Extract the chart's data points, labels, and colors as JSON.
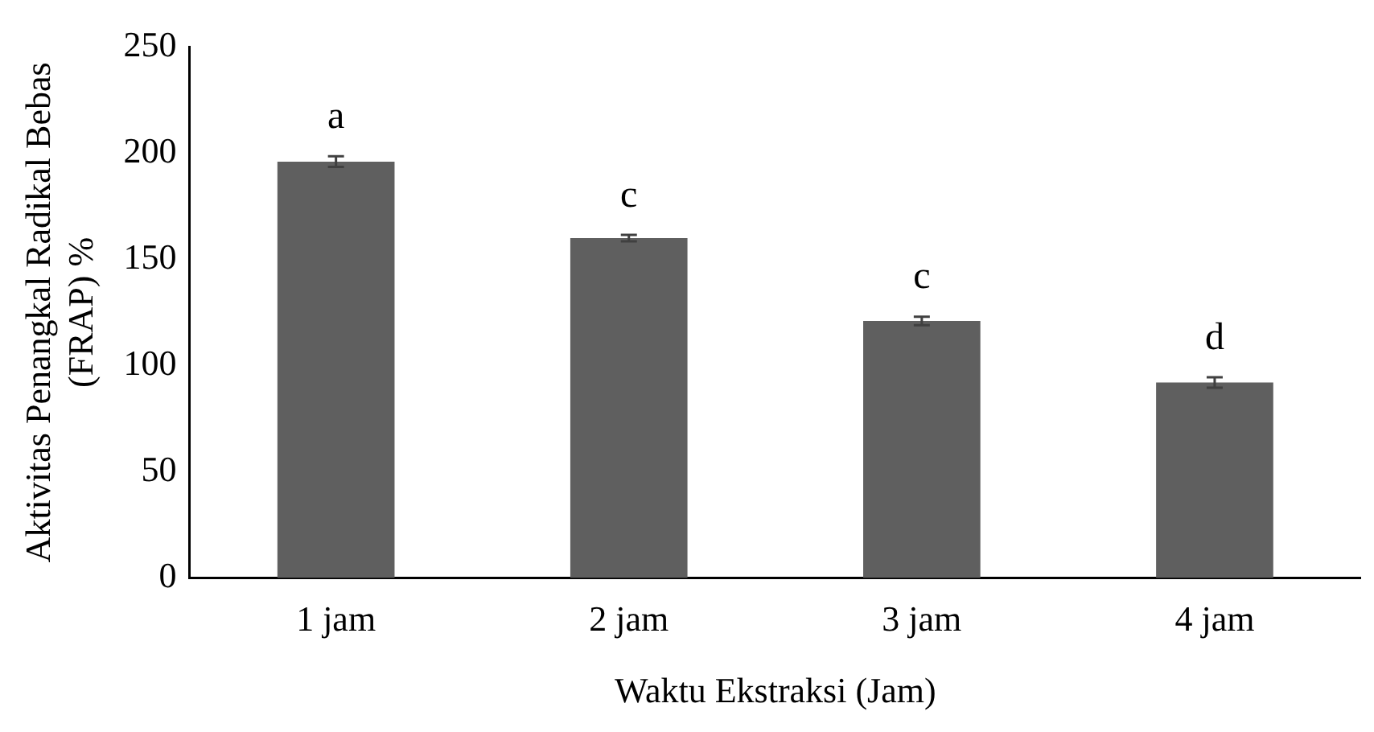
{
  "chart_data": {
    "type": "bar",
    "xlabel": "Waktu Ekstraksi (Jam)",
    "ylabel": "Aktivitas Penangkal Radikal Bebas\n(FRAP) %",
    "categories": [
      "1 jam",
      "2 jam",
      "3 jam",
      "4 jam"
    ],
    "values": [
      196,
      160,
      121,
      92
    ],
    "errors": [
      2.5,
      1.5,
      2,
      2.5
    ],
    "color": "#5f5f5f",
    "ylim": [
      0,
      250
    ],
    "yticks": [
      0,
      50,
      100,
      150,
      200,
      250
    ],
    "grid": false,
    "legend": false,
    "annotations": [
      "a",
      "c",
      "c",
      "d"
    ]
  }
}
